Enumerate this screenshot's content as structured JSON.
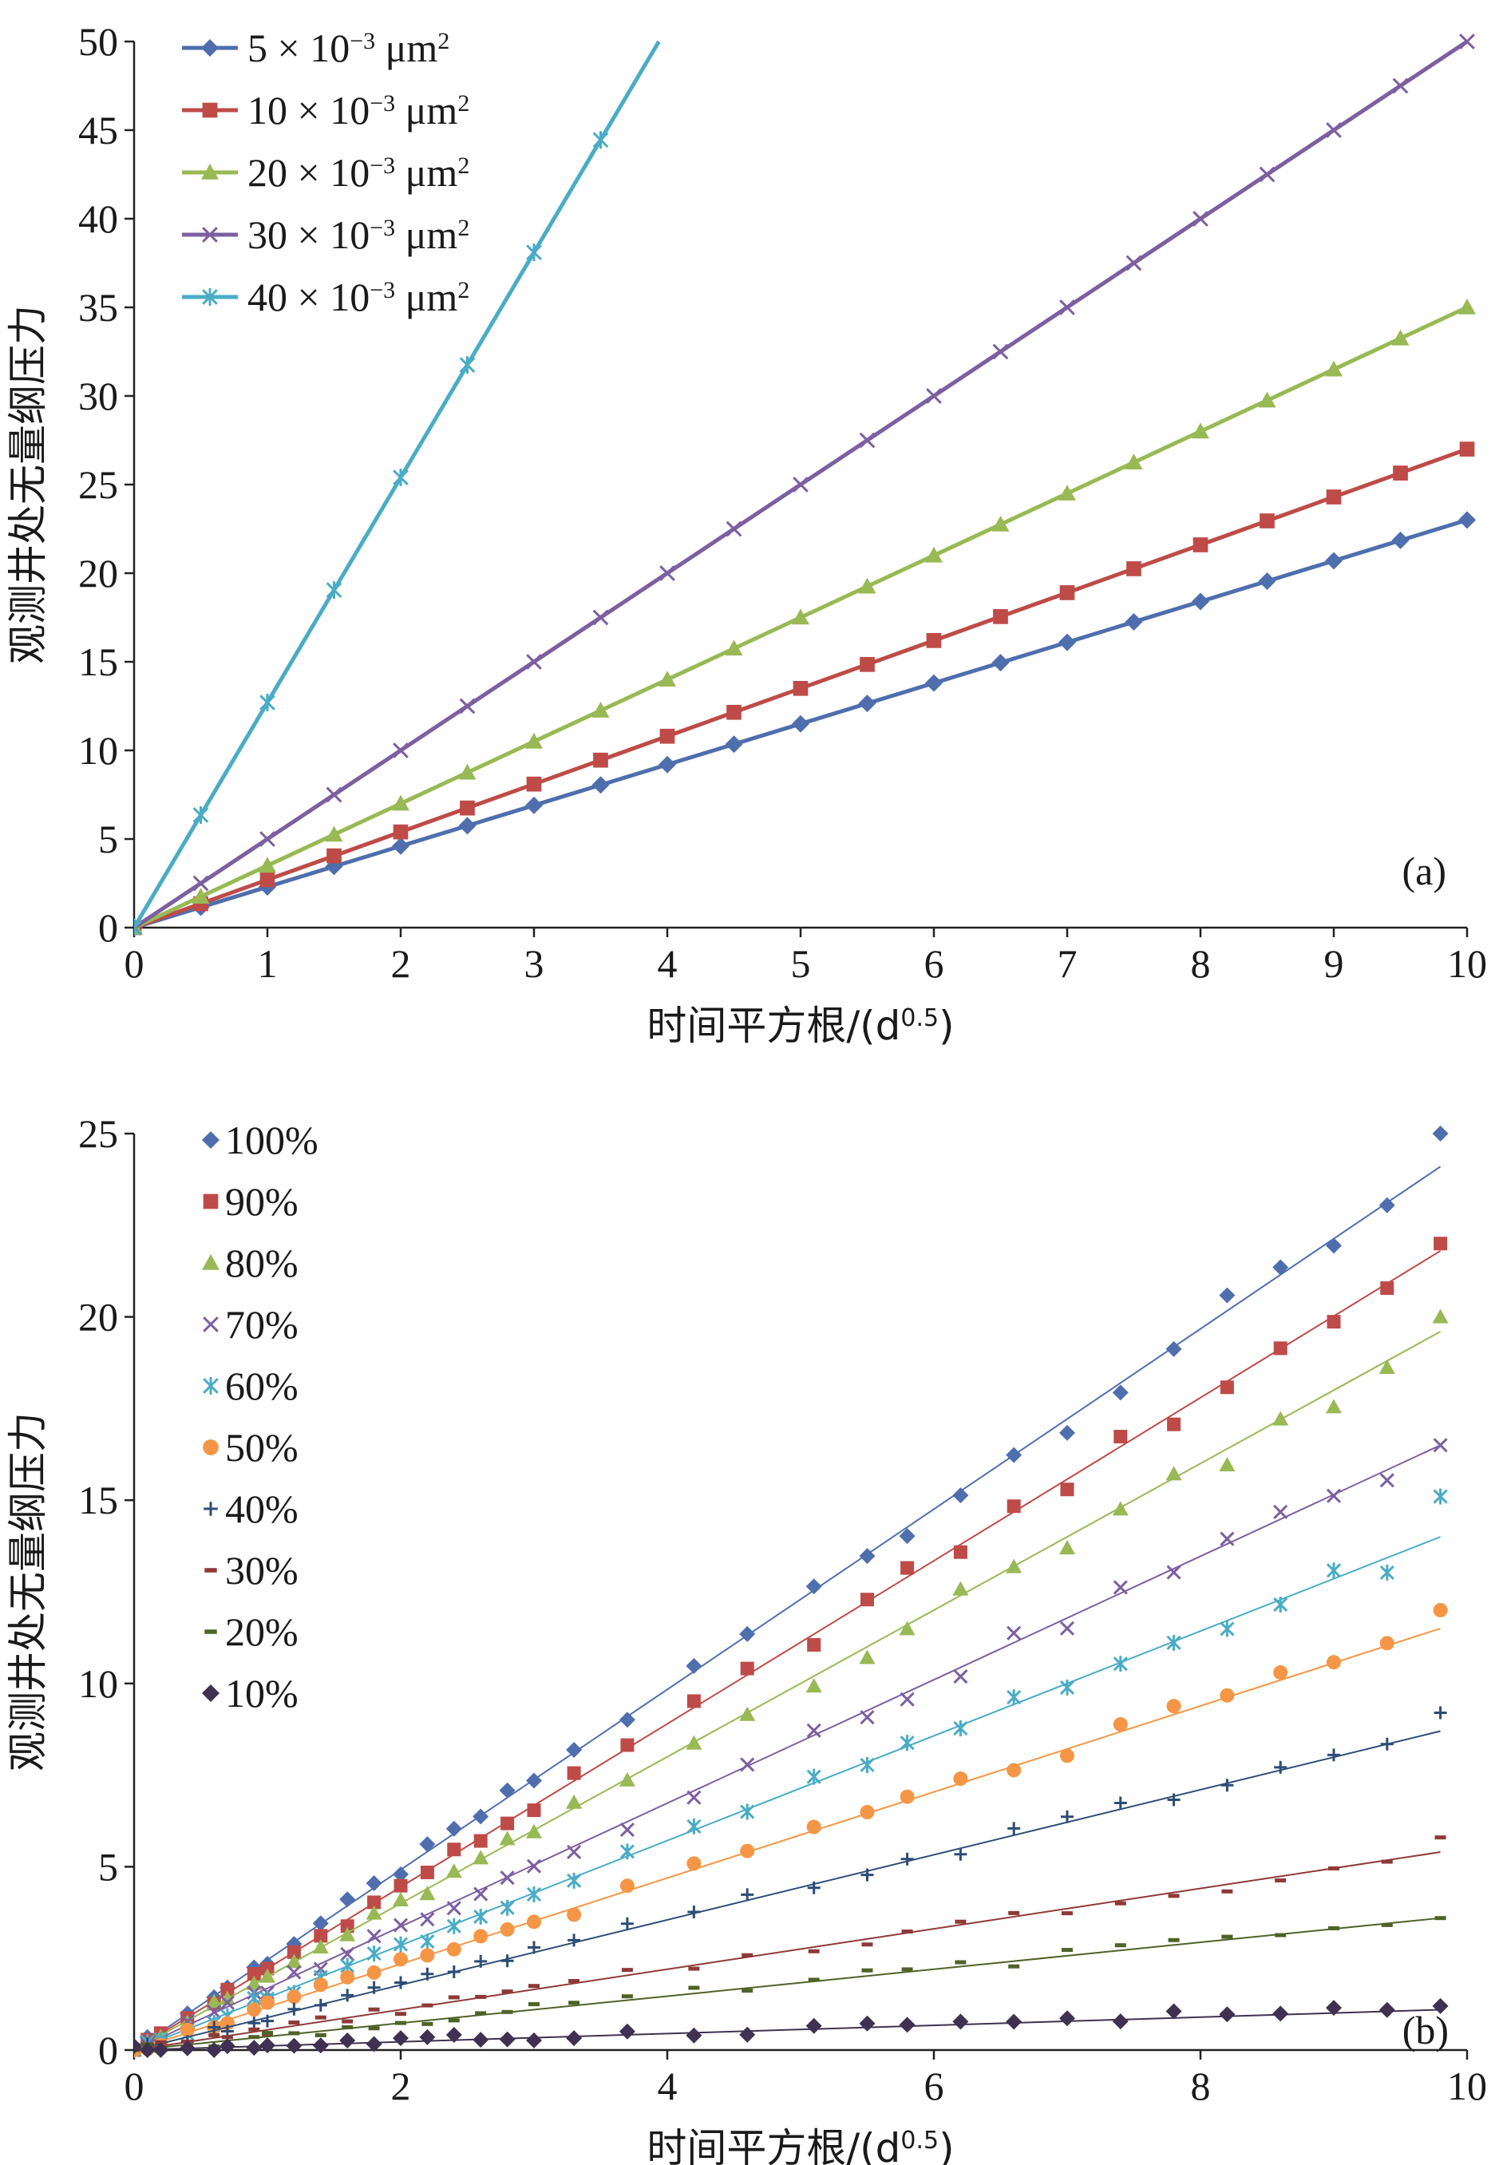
{
  "chart_data": [
    {
      "type": "line",
      "panel_label": "(a)",
      "xlabel": "时间平方根/(d",
      "xlabel_sup": "0.5",
      "xlabel_tail": ")",
      "ylabel": "观测井处无量纲压力",
      "xlim": [
        0,
        10
      ],
      "ylim": [
        0,
        50
      ],
      "xticks": [
        "0",
        "1",
        "2",
        "3",
        "4",
        "5",
        "6",
        "7",
        "8",
        "9",
        "10"
      ],
      "yticks": [
        "0",
        "5",
        "10",
        "15",
        "20",
        "25",
        "30",
        "35",
        "40",
        "45",
        "50"
      ],
      "grid": false,
      "legend_position": "top-left",
      "series": [
        {
          "name": "5 × 10",
          "sup": "−3",
          "unit": " μm",
          "unit_sup": "2",
          "color": "#4F6EAE",
          "marker": "diamond",
          "slope": 2.3
        },
        {
          "name": "10 × 10",
          "sup": "−3",
          "unit": " μm",
          "unit_sup": "2",
          "color": "#BE4B48",
          "marker": "square",
          "slope": 2.7
        },
        {
          "name": "20 × 10",
          "sup": "−3",
          "unit": " μm",
          "unit_sup": "2",
          "color": "#98B954",
          "marker": "triangle",
          "slope": 3.5
        },
        {
          "name": "30 × 10",
          "sup": "−3",
          "unit": " μm",
          "unit_sup": "2",
          "color": "#7D5FA0",
          "marker": "x",
          "slope": 5.0
        },
        {
          "name": "40 × 10",
          "sup": "−3",
          "unit": " μm",
          "unit_sup": "2",
          "color": "#4AACC5",
          "marker": "star",
          "slope": 12.7
        }
      ],
      "x_points": [
        0,
        0.5,
        1,
        1.5,
        2,
        2.5,
        3,
        3.5,
        4,
        4.5,
        5,
        5.5,
        6,
        6.5,
        7,
        7.5,
        8,
        8.5,
        9,
        9.5,
        10
      ]
    },
    {
      "type": "scatter",
      "panel_label": "(b)",
      "xlabel": "时间平方根/(d",
      "xlabel_sup": "0.5",
      "xlabel_tail": ")",
      "ylabel": "观测井处无量纲压力",
      "xlim": [
        0,
        10
      ],
      "ylim": [
        0,
        25
      ],
      "xticks": [
        "0",
        "2",
        "4",
        "6",
        "8",
        "10"
      ],
      "yticks": [
        "0",
        "5",
        "10",
        "15",
        "20",
        "25"
      ],
      "grid": false,
      "legend_position": "top-left",
      "series": [
        {
          "name": "100%",
          "color": "#4F6EAE",
          "marker": "diamond",
          "slope": 2.46,
          "end": 24.1,
          "final": 25.0
        },
        {
          "name": "90%",
          "color": "#BE4B48",
          "marker": "square",
          "slope": 2.22,
          "end": 21.8,
          "final": 22.0
        },
        {
          "name": "80%",
          "color": "#98B954",
          "marker": "triangle",
          "slope": 1.99,
          "end": 19.6,
          "final": 20.0
        },
        {
          "name": "70%",
          "color": "#7D5FA0",
          "marker": "x",
          "slope": 1.68,
          "end": 16.5,
          "final": 16.5
        },
        {
          "name": "60%",
          "color": "#4AACC5",
          "marker": "star",
          "slope": 1.42,
          "end": 14.0,
          "final": 15.1
        },
        {
          "name": "50%",
          "color": "#F59646",
          "marker": "circle",
          "slope": 1.17,
          "end": 11.5,
          "final": 12.0
        },
        {
          "name": "40%",
          "color": "#2C4D75",
          "marker": "plus",
          "slope": 0.89,
          "end": 8.7,
          "final": 9.2
        },
        {
          "name": "30%",
          "color": "#8E3A38",
          "marker": "dash",
          "slope": 0.55,
          "end": 5.4,
          "final": 5.8
        },
        {
          "name": "20%",
          "color": "#4F6228",
          "marker": "dash",
          "slope": 0.37,
          "end": 3.6,
          "final": 3.6
        },
        {
          "name": "10%",
          "color": "#3F3151",
          "marker": "diamond",
          "slope": 0.12,
          "end": 1.1,
          "final": 1.2
        }
      ],
      "x_points": [
        0,
        0.1,
        0.2,
        0.4,
        0.6,
        0.7,
        0.9,
        1.0,
        1.2,
        1.4,
        1.6,
        1.8,
        2.0,
        2.2,
        2.4,
        2.6,
        2.8,
        3.0,
        3.3,
        3.7,
        4.2,
        4.6,
        5.1,
        5.5,
        5.8,
        6.2,
        6.6,
        7.0,
        7.4,
        7.8,
        8.2,
        8.6,
        9.0,
        9.4,
        9.8
      ]
    }
  ]
}
